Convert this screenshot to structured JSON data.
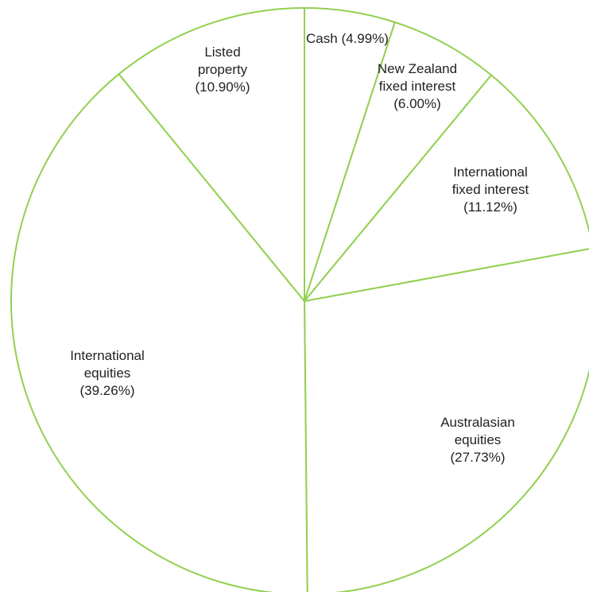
{
  "chart_data": {
    "type": "pie",
    "title": "",
    "slices": [
      {
        "label_lines": [
          "Cash (4.99%)"
        ],
        "value": 4.99
      },
      {
        "label_lines": [
          "New Zealand",
          "fixed interest",
          "(6.00%)"
        ],
        "value": 6.0
      },
      {
        "label_lines": [
          "International",
          "fixed interest",
          "(11.12%)"
        ],
        "value": 11.12
      },
      {
        "label_lines": [
          "Australasian",
          "equities",
          "(27.73%)"
        ],
        "value": 27.73
      },
      {
        "label_lines": [
          "International",
          "equities",
          "(39.26%)"
        ],
        "value": 39.26
      },
      {
        "label_lines": [
          "Listed",
          "property",
          "(10.90%)"
        ],
        "value": 10.9
      }
    ],
    "colors": {
      "stroke": "#92d050",
      "fill": "#ffffff",
      "label": "#222222"
    },
    "start_angle_deg": 0,
    "direction": "clockwise",
    "legend": "none"
  }
}
